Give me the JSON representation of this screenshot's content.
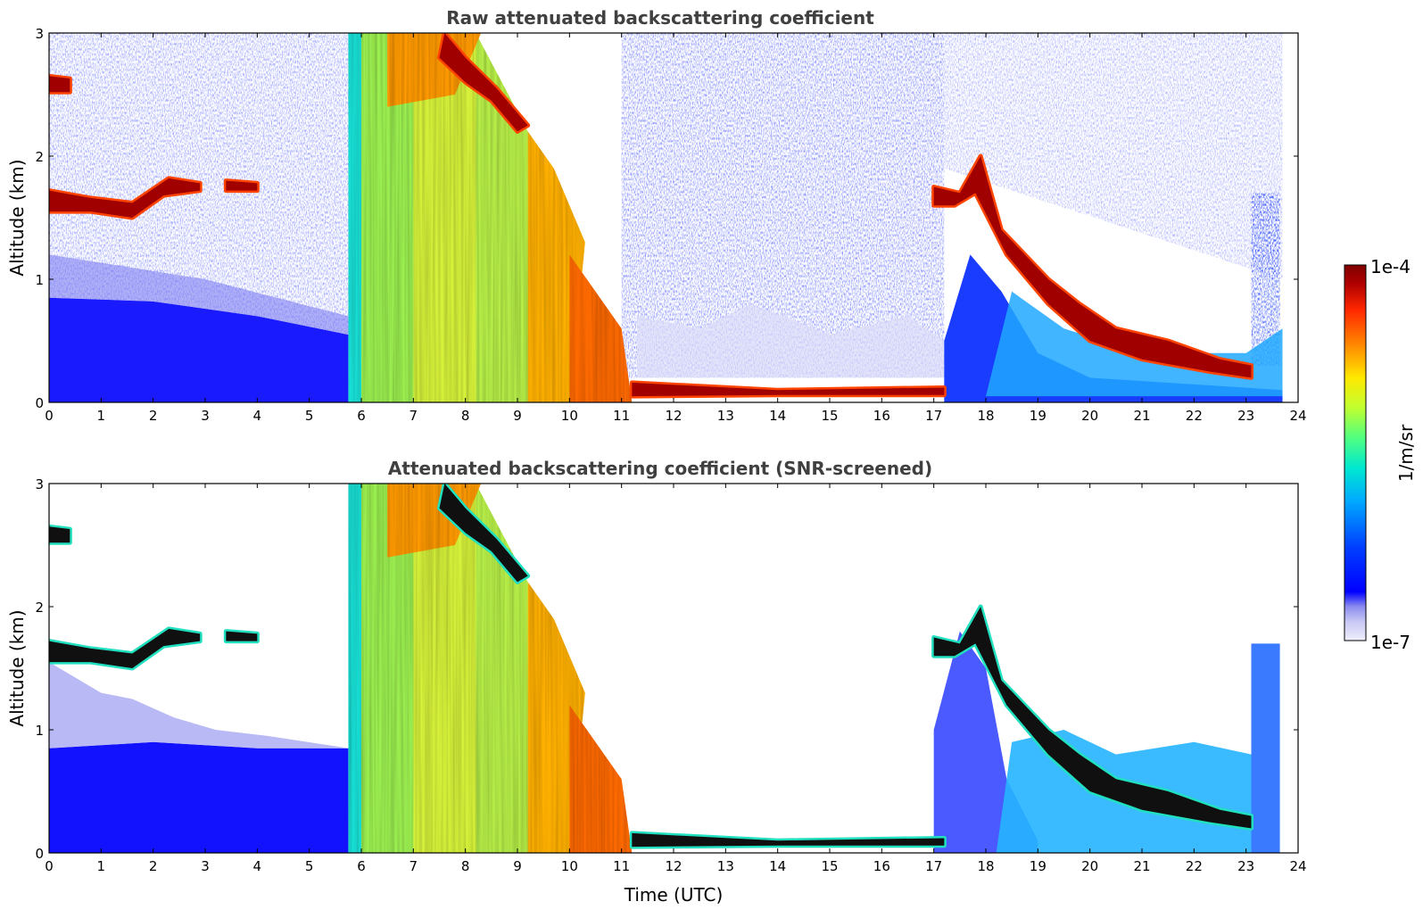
{
  "chart_data": [
    {
      "type": "heatmap",
      "title": "Raw attenuated backscattering coefficient",
      "xlabel": "",
      "ylabel": "Altitude (km)",
      "xlim": [
        0,
        24
      ],
      "ylim": [
        0,
        3
      ],
      "xticks": [
        "0",
        "1",
        "2",
        "3",
        "4",
        "5",
        "6",
        "7",
        "8",
        "9",
        "10",
        "11",
        "12",
        "13",
        "14",
        "15",
        "16",
        "17",
        "18",
        "19",
        "20",
        "21",
        "22",
        "23",
        "24"
      ],
      "yticks": [
        "0",
        "1",
        "2",
        "3"
      ],
      "cloud_layers": [
        {
          "t": [
            0.0,
            0.5
          ],
          "alt_km": [
            2.5,
            2.65
          ],
          "value": "1e-4"
        },
        {
          "t": [
            0.0,
            2.9
          ],
          "alt_km": [
            1.5,
            1.85
          ],
          "value": "1e-4"
        },
        {
          "t": [
            3.4,
            4.0
          ],
          "alt_km": [
            1.7,
            1.8
          ],
          "value": "1e-4"
        },
        {
          "t": [
            5.75,
            11.2
          ],
          "alt_km": [
            0.0,
            3.0
          ],
          "value": "1e-5"
        },
        {
          "t": [
            11.2,
            17.2
          ],
          "alt_km": [
            0.05,
            0.15
          ],
          "value": "1e-4"
        },
        {
          "t": [
            17.0,
            23.6
          ],
          "alt_km": [
            0.2,
            2.0
          ],
          "value": "1e-4"
        }
      ]
    },
    {
      "type": "heatmap",
      "title": "Attenuated backscattering coefficient (SNR-screened)",
      "xlabel": "Time (UTC)",
      "ylabel": "Altitude (km)",
      "xlim": [
        0,
        24
      ],
      "ylim": [
        0,
        3
      ],
      "xticks": [
        "0",
        "1",
        "2",
        "3",
        "4",
        "5",
        "6",
        "7",
        "8",
        "9",
        "10",
        "11",
        "12",
        "13",
        "14",
        "15",
        "16",
        "17",
        "18",
        "19",
        "20",
        "21",
        "22",
        "23",
        "24"
      ],
      "yticks": [
        "0",
        "1",
        "2",
        "3"
      ],
      "screened": true
    }
  ],
  "colorbar": {
    "label": "1/m/sr",
    "max_label": "1e-4",
    "min_label": "1e-7",
    "colormap": "jet",
    "colors": [
      "#e8e8fa",
      "#c8c8f5",
      "#9a9af0",
      "#0000ff",
      "#0050ff",
      "#00a0ff",
      "#00e0e0",
      "#40ff90",
      "#b0ff40",
      "#ffe000",
      "#ff8000",
      "#ff2000",
      "#a00000",
      "#800000"
    ]
  }
}
